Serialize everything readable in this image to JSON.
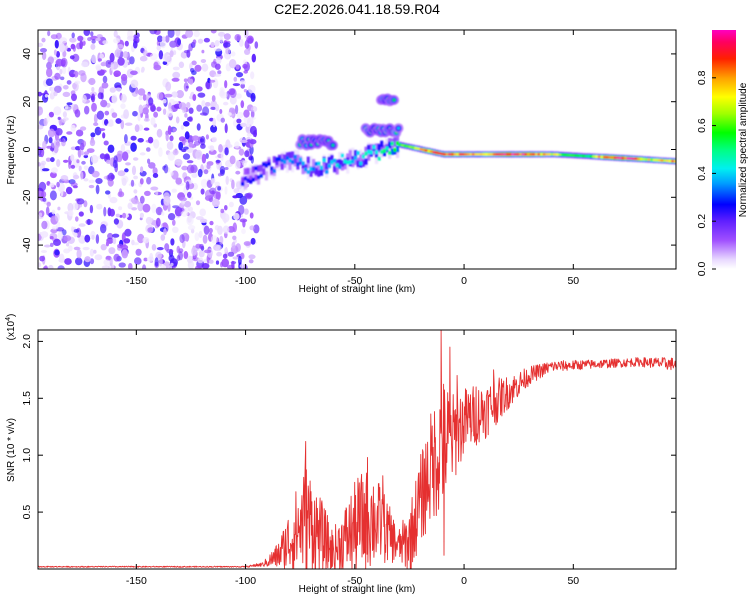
{
  "figure_title": "C2E2.2026.041.18.59.R04",
  "chart_data": [
    {
      "type": "heatmap",
      "title": "C2E2.2026.041.18.59.R04",
      "xlabel": "Height of straight line (km)",
      "ylabel": "Frequency (Hz)",
      "xlim": [
        -195,
        97
      ],
      "ylim": [
        -50,
        50
      ],
      "x_ticks": [
        -150,
        -100,
        -50,
        0,
        50
      ],
      "y_ticks": [
        -40,
        -20,
        0,
        20,
        40
      ],
      "x_tick_labels": [
        "-150",
        "-100",
        "-50",
        "0",
        "50"
      ],
      "y_tick_labels": [
        "-40",
        "-20",
        "0",
        "20",
        "40"
      ],
      "colorbar": {
        "label": "Normalized spectral amplitude",
        "range": [
          0.0,
          1.0
        ],
        "ticks": [
          0.0,
          0.2,
          0.4,
          0.6,
          0.8
        ],
        "tick_labels": [
          "0.0",
          "0.2",
          "0.4",
          "0.6",
          "0.8"
        ]
      },
      "noise_region": {
        "x_range": [
          -195,
          -95
        ],
        "freq_range": [
          -50,
          50
        ],
        "amplitude_range": [
          0.02,
          0.25
        ]
      },
      "ridge": [
        {
          "x": -100,
          "f": -12
        },
        {
          "x": -90,
          "f": -8
        },
        {
          "x": -80,
          "f": -4
        },
        {
          "x": -70,
          "f": -8
        },
        {
          "x": -60,
          "f": -6
        },
        {
          "x": -50,
          "f": -4
        },
        {
          "x": -40,
          "f": -1
        },
        {
          "x": -30,
          "f": 2
        },
        {
          "x": -20,
          "f": 0
        },
        {
          "x": -10,
          "f": -2
        },
        {
          "x": 0,
          "f": -2
        },
        {
          "x": 10,
          "f": -2
        },
        {
          "x": 20,
          "f": -2
        },
        {
          "x": 40,
          "f": -2
        },
        {
          "x": 60,
          "f": -3
        },
        {
          "x": 80,
          "f": -4
        },
        {
          "x": 97,
          "f": -5
        }
      ],
      "ridge_amplitude": [
        {
          "x": -100,
          "a": 0.25
        },
        {
          "x": -90,
          "a": 0.3
        },
        {
          "x": -80,
          "a": 0.35
        },
        {
          "x": -60,
          "a": 0.4
        },
        {
          "x": -40,
          "a": 0.45
        },
        {
          "x": -25,
          "a": 0.65
        },
        {
          "x": -15,
          "a": 0.9
        },
        {
          "x": 0,
          "a": 0.85
        },
        {
          "x": 10,
          "a": 0.75
        },
        {
          "x": 20,
          "a": 0.95
        },
        {
          "x": 30,
          "a": 0.9
        },
        {
          "x": 45,
          "a": 0.6
        },
        {
          "x": 55,
          "a": 0.5
        },
        {
          "x": 65,
          "a": 0.9
        },
        {
          "x": 75,
          "a": 0.95
        },
        {
          "x": 85,
          "a": 0.7
        },
        {
          "x": 97,
          "a": 0.8
        }
      ],
      "side_branches": [
        {
          "x_range": [
            -75,
            -60
          ],
          "f_center": 3,
          "width_hz": 3
        },
        {
          "x_range": [
            -45,
            -30
          ],
          "f_center": 8,
          "width_hz": 3
        },
        {
          "x_range": [
            -38,
            -32
          ],
          "f_center": 21,
          "width_hz": 2
        }
      ]
    },
    {
      "type": "line",
      "xlabel": "Height of straight line (km)",
      "ylabel": "SNR (10 * v/v)",
      "y_scale_label": "(x10",
      "y_scale_exponent": "4",
      "y_scale_close": ")",
      "xlim": [
        -195,
        97
      ],
      "ylim": [
        0,
        2.1
      ],
      "x_ticks": [
        -150,
        -100,
        -50,
        0,
        50
      ],
      "y_ticks": [
        0.5,
        1.0,
        1.5,
        2.0
      ],
      "x_tick_labels": [
        "-150",
        "-100",
        "-50",
        "0",
        "50"
      ],
      "y_tick_labels": [
        "0.5",
        "1.0",
        "1.5",
        "2.0"
      ],
      "line_color": "#e53030",
      "series_envelope": [
        {
          "x": -195,
          "base": 0.02,
          "amp": 0.005
        },
        {
          "x": -100,
          "base": 0.02,
          "amp": 0.005
        },
        {
          "x": -92,
          "base": 0.04,
          "amp": 0.02
        },
        {
          "x": -85,
          "base": 0.12,
          "amp": 0.12
        },
        {
          "x": -78,
          "base": 0.3,
          "amp": 0.35
        },
        {
          "x": -72,
          "base": 0.45,
          "amp": 0.5
        },
        {
          "x": -66,
          "base": 0.3,
          "amp": 0.35
        },
        {
          "x": -60,
          "base": 0.15,
          "amp": 0.2
        },
        {
          "x": -55,
          "base": 0.25,
          "amp": 0.3
        },
        {
          "x": -48,
          "base": 0.4,
          "amp": 0.45
        },
        {
          "x": -42,
          "base": 0.45,
          "amp": 0.45
        },
        {
          "x": -36,
          "base": 0.35,
          "amp": 0.3
        },
        {
          "x": -30,
          "base": 0.2,
          "amp": 0.15
        },
        {
          "x": -25,
          "base": 0.25,
          "amp": 0.3
        },
        {
          "x": -20,
          "base": 0.6,
          "amp": 0.4
        },
        {
          "x": -15,
          "base": 0.9,
          "amp": 0.5
        },
        {
          "x": -10,
          "base": 1.1,
          "amp": 0.6
        },
        {
          "x": -5,
          "base": 1.15,
          "amp": 0.4
        },
        {
          "x": 0,
          "base": 1.3,
          "amp": 0.3
        },
        {
          "x": 10,
          "base": 1.4,
          "amp": 0.25
        },
        {
          "x": 20,
          "base": 1.55,
          "amp": 0.15
        },
        {
          "x": 30,
          "base": 1.7,
          "amp": 0.08
        },
        {
          "x": 40,
          "base": 1.78,
          "amp": 0.05
        },
        {
          "x": 60,
          "base": 1.8,
          "amp": 0.04
        },
        {
          "x": 80,
          "base": 1.82,
          "amp": 0.04
        },
        {
          "x": 97,
          "base": 1.8,
          "amp": 0.06
        }
      ],
      "spikes": [
        {
          "x": -10.5,
          "y": 2.1
        },
        {
          "x": -6.5,
          "y": 1.95
        },
        {
          "x": -3.2,
          "y": 1.7
        },
        {
          "x": -9.2,
          "y": 0.12
        },
        {
          "x": 5.5,
          "y": 1.6
        },
        {
          "x": 13.5,
          "y": 1.75
        },
        {
          "x": -72.5,
          "y": 1.12
        },
        {
          "x": -44.2,
          "y": 0.98
        },
        {
          "x": -37.2,
          "y": 0.82
        }
      ]
    }
  ]
}
